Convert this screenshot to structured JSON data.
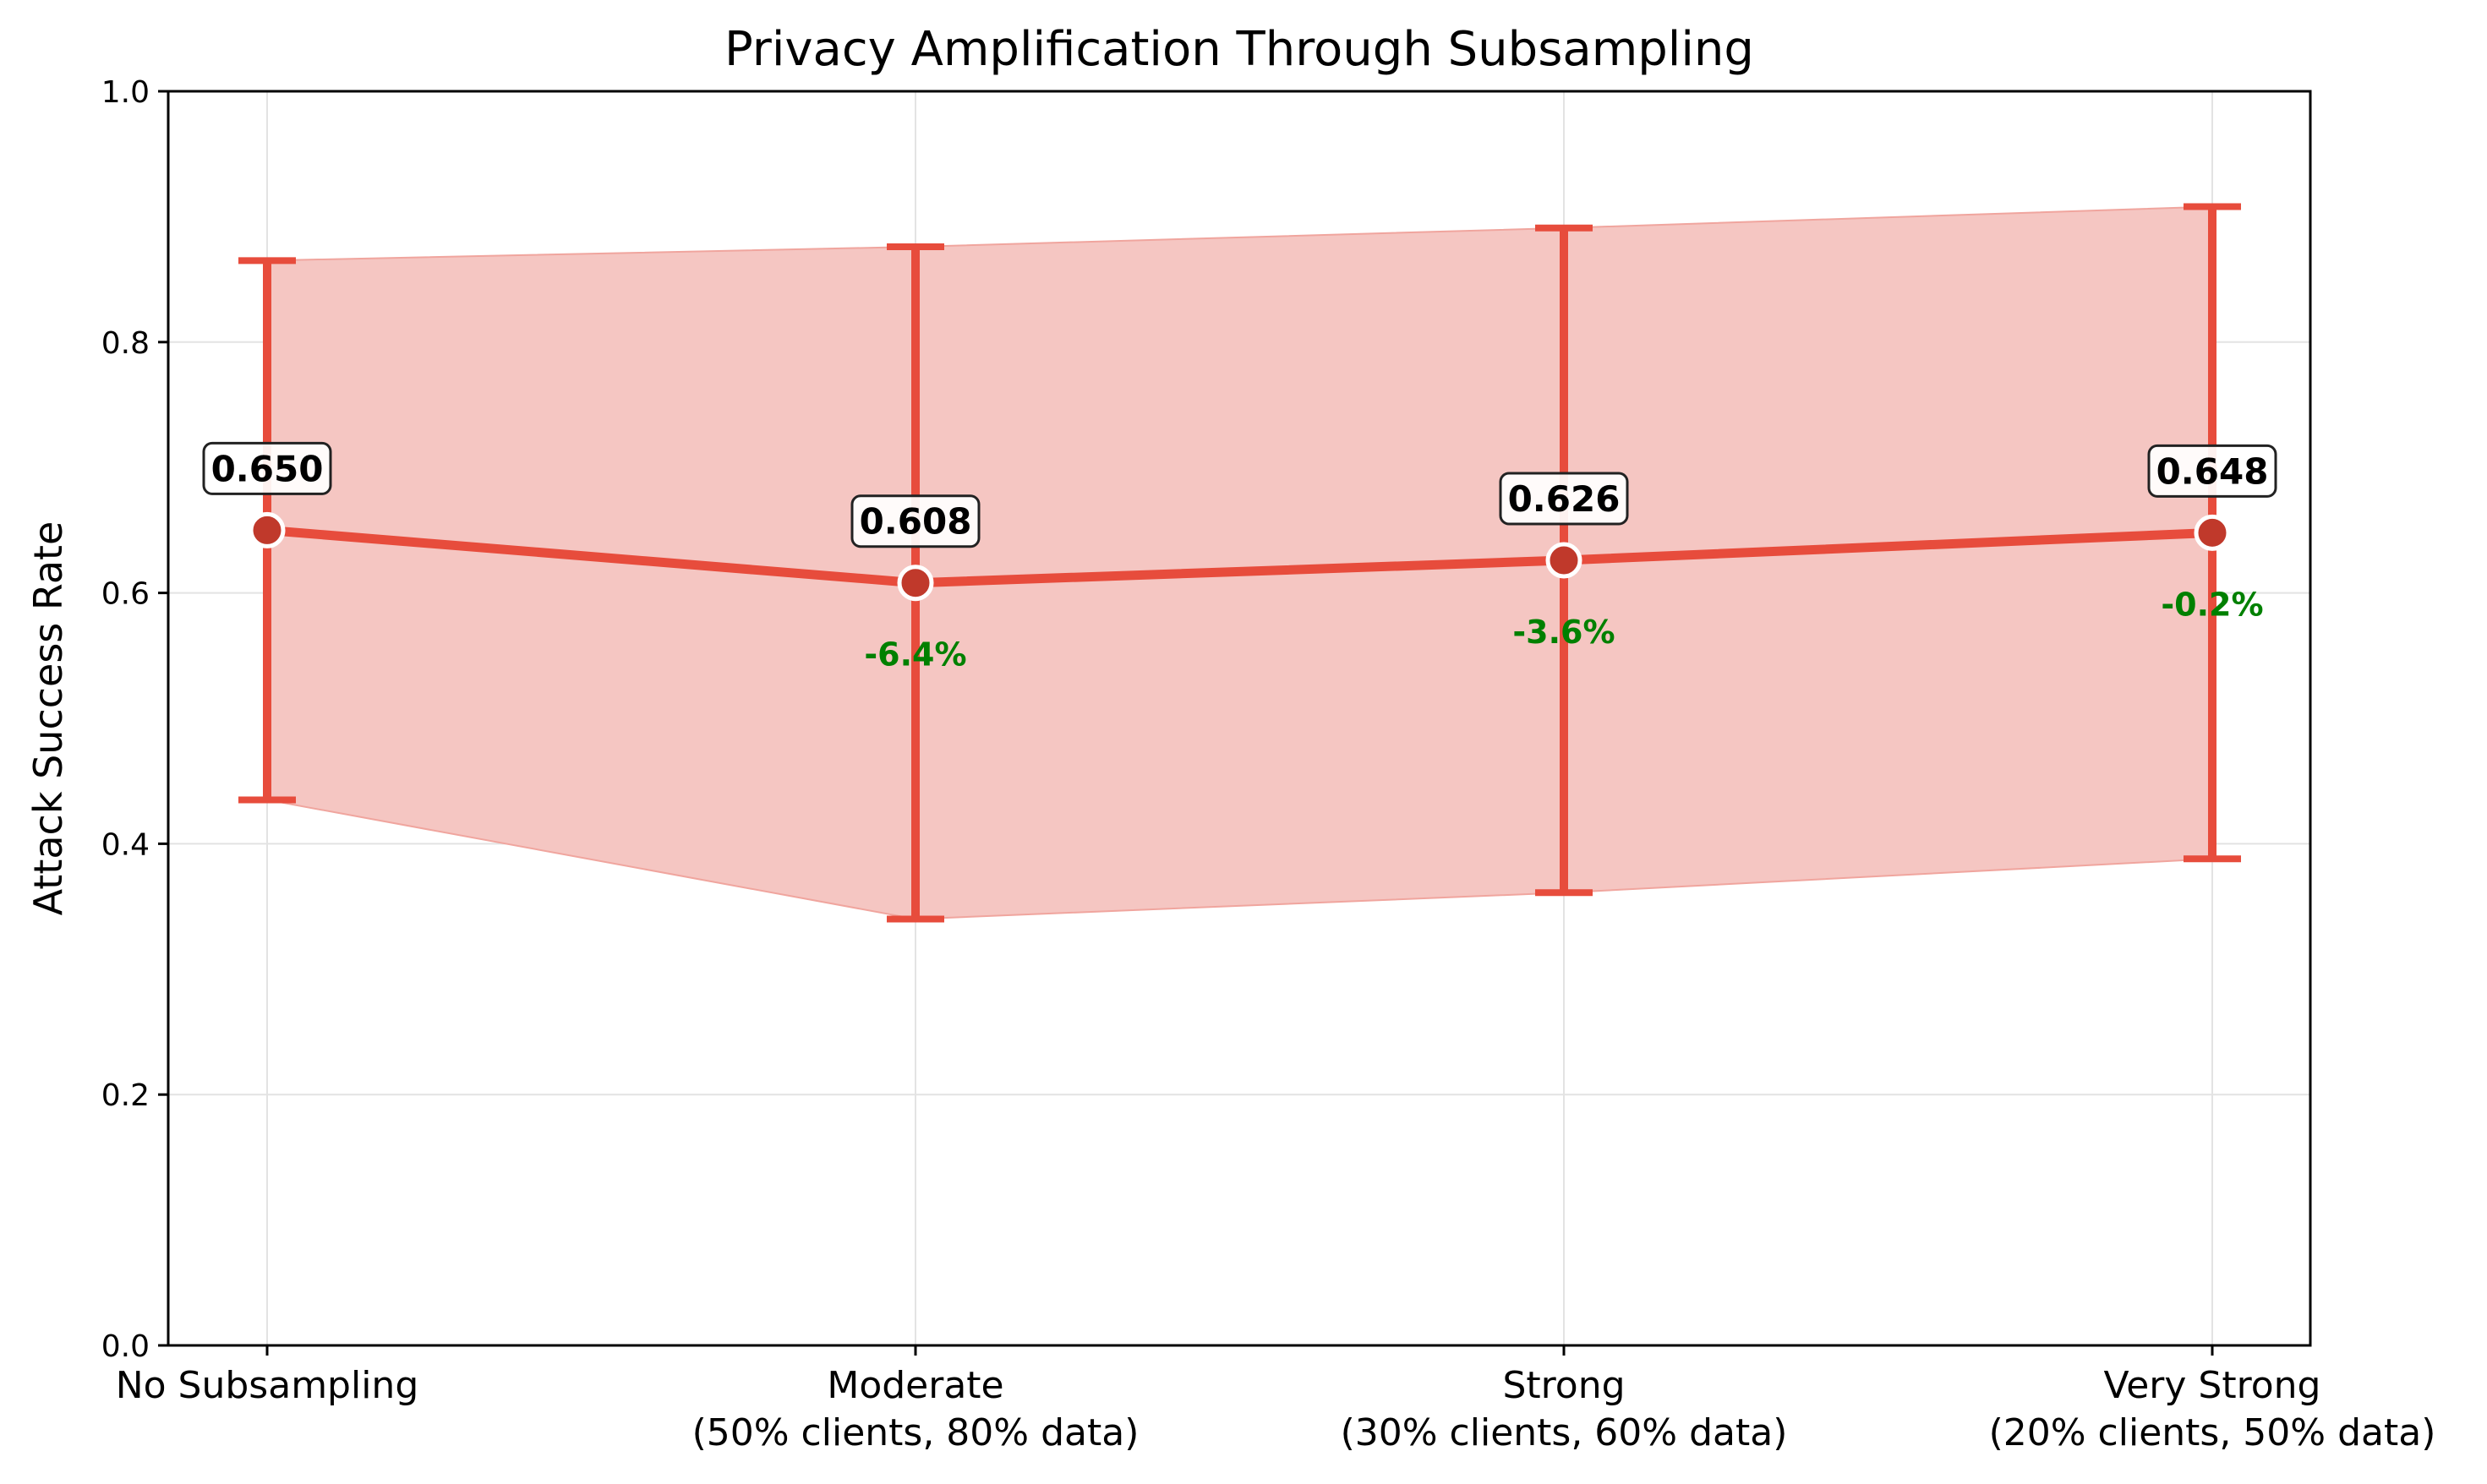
{
  "chart_data": {
    "type": "line",
    "title": "Privacy Amplification Through Subsampling",
    "xlabel": "",
    "ylabel": "Attack Success Rate",
    "ylim": [
      0,
      1
    ],
    "yticks": [
      "0.0",
      "0.2",
      "0.4",
      "0.6",
      "0.8",
      "1.0"
    ],
    "grid": true,
    "categories": [
      [
        "No Subsampling"
      ],
      [
        "Moderate",
        "(50% clients, 80% data)"
      ],
      [
        "Strong",
        "(30% clients, 60% data)"
      ],
      [
        "Very Strong",
        "(20% clients, 50% data)"
      ]
    ],
    "values": [
      0.65,
      0.608,
      0.626,
      0.648
    ],
    "lower": [
      0.435,
      0.34,
      0.361,
      0.388
    ],
    "upper": [
      0.865,
      0.876,
      0.891,
      0.908
    ],
    "value_labels": [
      "0.650",
      "0.608",
      "0.626",
      "0.648"
    ],
    "change_labels": [
      "",
      "-6.4%",
      "-3.6%",
      "-0.2%"
    ],
    "colors": {
      "line": "#e74c3c",
      "marker": "#c0392b",
      "band": "#f5c6c2",
      "change_text": "#008000"
    }
  }
}
